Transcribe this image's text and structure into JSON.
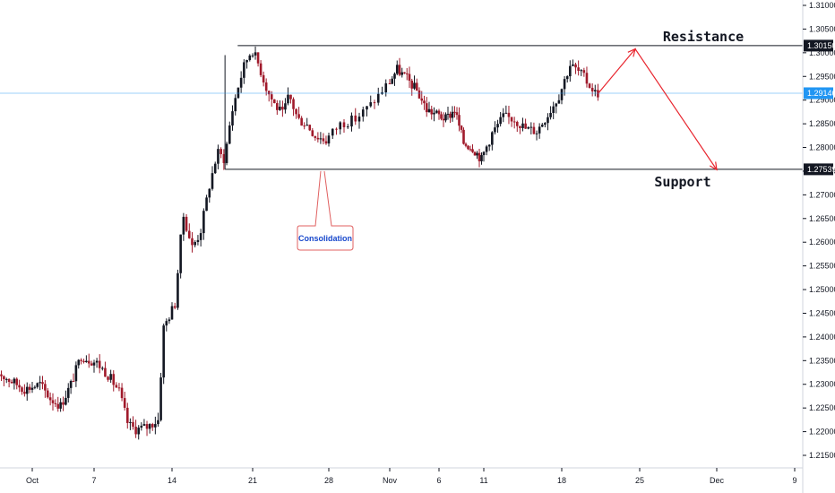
{
  "chart_data": {
    "type": "candlestick",
    "instrument_display": "price",
    "y_axis": {
      "ylim": [
        1.2095,
        1.3145
      ],
      "ticks": [
        "1.21500",
        "1.22000",
        "1.22500",
        "1.23000",
        "1.23500",
        "1.24000",
        "1.24500",
        "1.25000",
        "1.25500",
        "1.26000",
        "1.26500",
        "1.27000",
        "1.27500",
        "1.28000",
        "1.28500",
        "1.29000",
        "1.29500",
        "1.30000",
        "1.30500",
        "1.31000"
      ],
      "tick_values": [
        1.215,
        1.22,
        1.225,
        1.23,
        1.235,
        1.24,
        1.245,
        1.25,
        1.255,
        1.26,
        1.265,
        1.27,
        1.275,
        1.28,
        1.285,
        1.29,
        1.295,
        1.3,
        1.305,
        1.31
      ]
    },
    "x_axis": {
      "ticks": [
        {
          "label": "Oct",
          "day": 1
        },
        {
          "label": "7",
          "day": 7
        },
        {
          "label": "14",
          "day": 14
        },
        {
          "label": "21",
          "day": 21
        },
        {
          "label": "28",
          "day": 28
        },
        {
          "label": "Nov",
          "day": 32
        },
        {
          "label": "6",
          "day": 37
        },
        {
          "label": "11",
          "day": 42
        },
        {
          "label": "18",
          "day": 49
        },
        {
          "label": "25",
          "day": 56
        },
        {
          "label": "Dec",
          "day": 62
        },
        {
          "label": "9",
          "day": 70
        }
      ]
    },
    "levels": [
      {
        "name": "Resistance",
        "value": 1.3015,
        "tag": "1.30150",
        "color": "#131722"
      },
      {
        "name": "Support",
        "value": 1.27539,
        "tag": "1.27539",
        "color": "#131722"
      },
      {
        "name": "Current",
        "value": 1.29146,
        "tag": "1.29146",
        "color": "#2196f3"
      }
    ],
    "ohlc_hourly_key_points": [
      [
        1.21,
        1.23
      ],
      [
        1.22,
        1.241
      ],
      [
        1.228,
        1.233
      ],
      [
        1.203,
        1.222
      ],
      [
        1.218,
        1.242
      ],
      [
        1.26,
        1.286
      ],
      [
        1.29,
        1.3015
      ],
      [
        1.285,
        1.293
      ],
      [
        1.281,
        1.287
      ],
      [
        1.295,
        1.2975
      ],
      [
        1.288,
        1.291
      ],
      [
        1.277,
        1.28
      ],
      [
        1.285,
        1.287
      ],
      [
        1.292,
        1.298
      ],
      [
        1.291,
        1.2915
      ]
    ],
    "annotations": {
      "resistance_label": "Resistance",
      "support_label": "Support",
      "callout": "Consolidation",
      "arrow_points": [
        {
          "day": 52.3,
          "value": 1.2915
        },
        {
          "day": 55.6,
          "value": 1.3008
        },
        {
          "day": 62.0,
          "value": 1.2753
        }
      ]
    }
  },
  "colors": {
    "up_candle": "#131722",
    "down_candle": "#a01a2b",
    "up_wick": "#131722",
    "accent_blue": "#2196f3",
    "callout_border": "#e06060",
    "arrow": "#e8262f"
  }
}
